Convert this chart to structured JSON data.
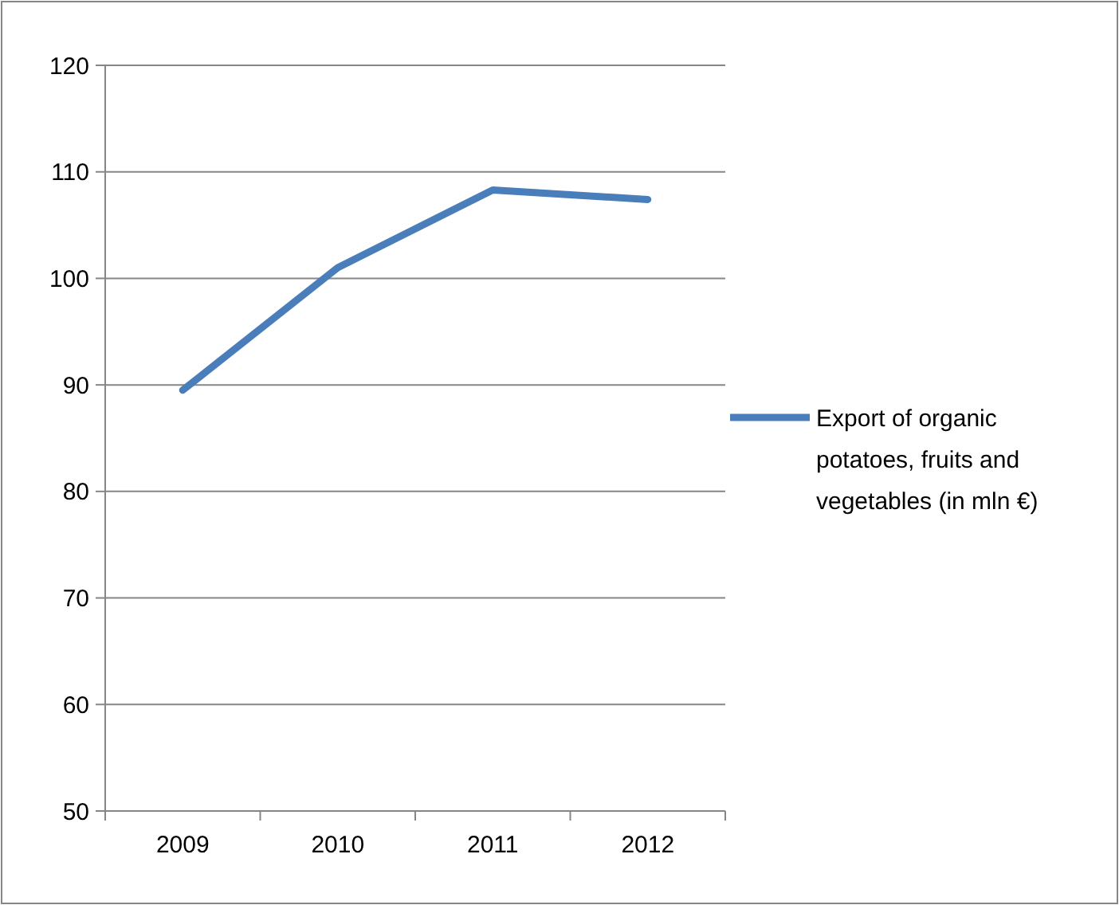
{
  "chart_data": {
    "type": "line",
    "categories": [
      "2009",
      "2010",
      "2011",
      "2012"
    ],
    "series": [
      {
        "name": "Export of organic potatoes, fruits and vegetables (in mln €)",
        "color": "#4a7ebb",
        "values": [
          89.5,
          101,
          108.3,
          107.4
        ]
      }
    ],
    "ylim": [
      50,
      120
    ],
    "yticks": [
      50,
      60,
      70,
      80,
      90,
      100,
      110,
      120
    ],
    "grid": "y",
    "legend": "right",
    "marker": "none",
    "line_style": "solid"
  }
}
